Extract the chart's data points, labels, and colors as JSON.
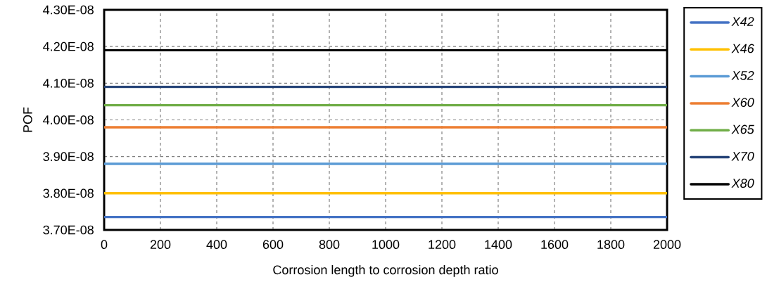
{
  "chart_data": {
    "type": "line",
    "xlabel": "Corrosion length to corrosion depth ratio",
    "ylabel": "POF",
    "x": [
      0,
      2000
    ],
    "xlim": [
      0,
      2000
    ],
    "xticks": [
      0,
      200,
      400,
      600,
      800,
      1000,
      1200,
      1400,
      1600,
      1800,
      2000
    ],
    "ylim": [
      3.7e-08,
      4.3e-08
    ],
    "yticks": [
      {
        "value": 3.7e-08,
        "label": "3.70E-08"
      },
      {
        "value": 3.8e-08,
        "label": "3.80E-08"
      },
      {
        "value": 3.9e-08,
        "label": "3.90E-08"
      },
      {
        "value": 4e-08,
        "label": "4.00E-08"
      },
      {
        "value": 4.1e-08,
        "label": "4.10E-08"
      },
      {
        "value": 4.2e-08,
        "label": "4.20E-08"
      },
      {
        "value": 4.3e-08,
        "label": "4.30E-08"
      }
    ],
    "grid": true,
    "legend": "right",
    "series": [
      {
        "name": "*X42*",
        "color": "#4472c4",
        "values": [
          3.735e-08,
          3.735e-08
        ]
      },
      {
        "name": "*X46*",
        "color": "#ffc000",
        "values": [
          3.8e-08,
          3.8e-08
        ]
      },
      {
        "name": "*X52*",
        "color": "#5b9bd5",
        "values": [
          3.88e-08,
          3.88e-08
        ]
      },
      {
        "name": "*X60*",
        "color": "#ed7d31",
        "values": [
          3.98e-08,
          3.98e-08
        ]
      },
      {
        "name": "*X65*",
        "color": "#70ad47",
        "values": [
          4.04e-08,
          4.04e-08
        ]
      },
      {
        "name": "*X70*",
        "color": "#264478",
        "values": [
          4.09e-08,
          4.09e-08
        ]
      },
      {
        "name": "*X80*",
        "color": "#000000",
        "values": [
          4.19e-08,
          4.19e-08
        ]
      }
    ]
  }
}
